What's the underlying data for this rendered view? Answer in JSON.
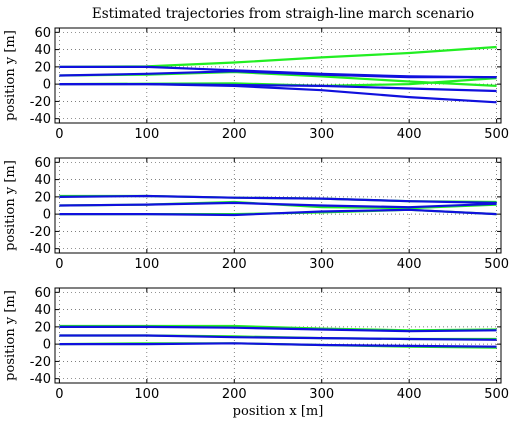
{
  "figure": {
    "title": "Estimated trajectories from straigh-line march scenario"
  },
  "chart_data": [
    {
      "type": "line",
      "title": "Estimated trajectories from straigh-line march scenario",
      "xlabel": "",
      "ylabel": "position y [m]",
      "xlim": [
        -5,
        505
      ],
      "ylim": [
        -45,
        65
      ],
      "xticks": [
        0,
        100,
        200,
        300,
        400,
        500
      ],
      "yticks": [
        -40,
        -20,
        0,
        20,
        40,
        60
      ],
      "grid": true,
      "colors": [
        "#22ee22",
        "#1010dd"
      ],
      "series": [
        {
          "color": "#22ee22",
          "x": [
            0,
            100,
            200,
            300,
            400,
            500
          ],
          "y": [
            20,
            20.5,
            25,
            31,
            36,
            43
          ]
        },
        {
          "color": "#22ee22",
          "x": [
            0,
            100,
            200,
            300,
            400,
            500
          ],
          "y": [
            10,
            11,
            14,
            9,
            3,
            -2
          ]
        },
        {
          "color": "#22ee22",
          "x": [
            0,
            100,
            200,
            300,
            400,
            500
          ],
          "y": [
            0,
            0.5,
            1,
            -2,
            0,
            7
          ]
        },
        {
          "color": "#1010dd",
          "x": [
            0,
            100,
            200,
            300,
            400,
            500
          ],
          "y": [
            20,
            20,
            16,
            12,
            9,
            8
          ]
        },
        {
          "color": "#1010dd",
          "x": [
            0,
            100,
            200,
            300,
            400,
            500
          ],
          "y": [
            10,
            12,
            15,
            11,
            8,
            8
          ]
        },
        {
          "color": "#1010dd",
          "x": [
            0,
            100,
            200,
            300,
            400,
            500
          ],
          "y": [
            0,
            0,
            -2,
            -7,
            -15,
            -21
          ]
        },
        {
          "color": "#1010dd",
          "x": [
            0,
            100,
            200,
            300,
            400,
            500
          ],
          "y": [
            0,
            0,
            -1,
            -2,
            -5,
            -8
          ]
        }
      ]
    },
    {
      "type": "line",
      "title": "",
      "xlabel": "",
      "ylabel": "position y [m]",
      "xlim": [
        -5,
        505
      ],
      "ylim": [
        -45,
        65
      ],
      "xticks": [
        0,
        100,
        200,
        300,
        400,
        500
      ],
      "yticks": [
        -40,
        -20,
        0,
        20,
        40,
        60
      ],
      "grid": true,
      "colors": [
        "#22ee22",
        "#1010dd"
      ],
      "series": [
        {
          "color": "#22ee22",
          "x": [
            0,
            100,
            200,
            300,
            400,
            500
          ],
          "y": [
            21,
            21,
            19,
            18,
            15,
            14
          ]
        },
        {
          "color": "#22ee22",
          "x": [
            0,
            100,
            200,
            300,
            400,
            500
          ],
          "y": [
            10,
            11,
            14,
            8,
            7,
            11
          ]
        },
        {
          "color": "#22ee22",
          "x": [
            0,
            100,
            200,
            300,
            400,
            500
          ],
          "y": [
            0,
            0,
            0,
            2,
            5,
            0
          ]
        },
        {
          "color": "#1010dd",
          "x": [
            0,
            100,
            200,
            300,
            400,
            500
          ],
          "y": [
            20,
            21,
            19,
            18,
            15,
            13
          ]
        },
        {
          "color": "#1010dd",
          "x": [
            0,
            100,
            200,
            300,
            400,
            500
          ],
          "y": [
            10,
            11,
            13,
            10,
            8,
            12
          ]
        },
        {
          "color": "#1010dd",
          "x": [
            0,
            100,
            200,
            300,
            400,
            500
          ],
          "y": [
            0,
            0,
            -1,
            3,
            5,
            0
          ]
        }
      ]
    },
    {
      "type": "line",
      "title": "",
      "xlabel": "position x [m]",
      "ylabel": "position y [m]",
      "xlim": [
        -5,
        505
      ],
      "ylim": [
        -45,
        65
      ],
      "xticks": [
        0,
        100,
        200,
        300,
        400,
        500
      ],
      "yticks": [
        -40,
        -20,
        0,
        20,
        40,
        60
      ],
      "grid": true,
      "colors": [
        "#22ee22",
        "#1010dd"
      ],
      "series": [
        {
          "color": "#22ee22",
          "x": [
            0,
            100,
            200,
            300,
            400,
            500
          ],
          "y": [
            21,
            21,
            21,
            18,
            16,
            17
          ]
        },
        {
          "color": "#22ee22",
          "x": [
            0,
            100,
            200,
            300,
            400,
            500
          ],
          "y": [
            10,
            10,
            9,
            7,
            6,
            6
          ]
        },
        {
          "color": "#22ee22",
          "x": [
            0,
            100,
            200,
            300,
            400,
            500
          ],
          "y": [
            0,
            1,
            1,
            -1,
            -3,
            -4
          ]
        },
        {
          "color": "#1010dd",
          "x": [
            0,
            100,
            200,
            300,
            400,
            500
          ],
          "y": [
            20,
            20,
            19,
            17,
            15,
            16
          ]
        },
        {
          "color": "#1010dd",
          "x": [
            0,
            100,
            200,
            300,
            400,
            500
          ],
          "y": [
            10,
            10,
            8,
            7,
            6,
            5
          ]
        },
        {
          "color": "#1010dd",
          "x": [
            0,
            100,
            200,
            300,
            400,
            500
          ],
          "y": [
            0,
            0,
            1,
            -1,
            -2,
            -3
          ]
        }
      ]
    }
  ]
}
